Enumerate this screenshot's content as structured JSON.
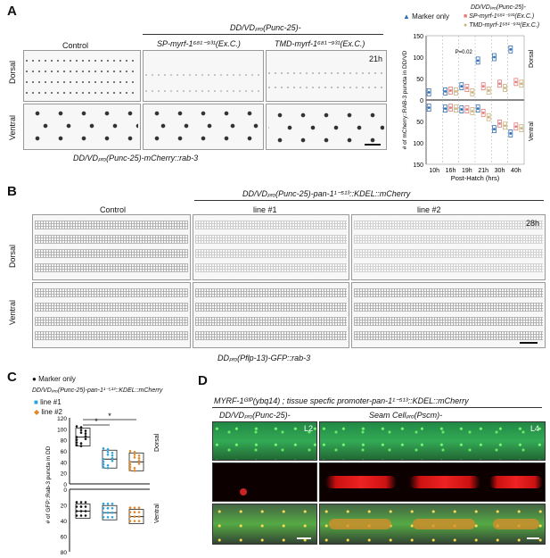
{
  "panels": {
    "A": {
      "letter": "A",
      "header": "DD/VDₚᵣₒ(Punc-25)-",
      "columns": [
        "Control",
        "SP-myrf-1⁶⁸¹⁻⁹³¹(Ex.C.)",
        "TMD-myrf-1⁶⁸¹⁻⁹³¹(Ex.C.)"
      ],
      "time": "21h",
      "rows": [
        "Dorsal",
        "Ventral"
      ],
      "footer": "DD/VDₚᵣₒ(Punc-25)-mCherry::rab-3",
      "legend": {
        "marker_only": "Marker only",
        "construct_header": "DD/VDₚᵣₒ(Punc-25)-",
        "sp": "SP-myrf-1⁶⁸¹⁻⁹³¹(Ex.C.)",
        "tmd": "TMD-myrf-1⁶⁸¹⁻⁹³¹(Ex.C.)"
      },
      "pvalue": "P=\n0.02",
      "side_labels": [
        "Dorsal",
        "Ventral"
      ]
    },
    "B": {
      "letter": "B",
      "header": "DD/VDₚᵣₒ(Punc-25)-pan-1¹⁻⁵¹³::KDEL::mCherry",
      "columns": [
        "Control",
        "line #1",
        "line #2"
      ],
      "time": "28h",
      "rows": [
        "Dorsal",
        "Ventral"
      ],
      "footer": "DDₚᵣₒ(Pflp-13)-GFP::rab-3"
    },
    "C": {
      "letter": "C",
      "legend_marker": "Marker only",
      "legend_header": "DD/VDₚᵣₒ(Punc-25)-pan-1¹⁻⁵¹³::KDEL::mCherry",
      "line1": "line #1",
      "line2": "line #2",
      "star": "*",
      "side_labels": [
        "Dorsal",
        "Ventral"
      ]
    },
    "D": {
      "letter": "D",
      "header": "MYRF-1ᴳᶠᴾ(ybq14) ;  tissue specfic promoter-pan-1¹⁻⁵¹³::KDEL::mCherry",
      "col1": "DD/VDₚᵣₒ(Punc-25)-",
      "col2": "Seam Cellₚᵣₒ(Pscm)-",
      "stage1": "L2",
      "stage2": "L4"
    }
  },
  "chart_data": [
    {
      "type": "box",
      "panel": "A",
      "categories": [
        "10h",
        "16h",
        "19h",
        "21h",
        "30h",
        "40h"
      ],
      "xlabel": "Post-Hatch (hrs)",
      "ylabel": "# of mCherry::RAB-3 puncta in DD/VD",
      "yticks": [
        "150",
        "100",
        "50",
        "0",
        "50",
        "100",
        "150"
      ],
      "ylim_dorsal": [
        0,
        150
      ],
      "ylim_ventral": [
        0,
        150
      ],
      "colors": {
        "marker_only": "#2f6db5",
        "sp": "#e57a7a",
        "tmd": "#c9b27c"
      },
      "series": [
        {
          "name": "Marker only",
          "dorsal": [
            18,
            20,
            32,
            92,
            100,
            118
          ],
          "ventral": [
            18,
            20,
            22,
            20,
            68,
            78
          ]
        },
        {
          "name": "SP-myrf-1681-931(Ex.C.)",
          "dorsal": [
            null,
            22,
            28,
            32,
            38,
            42
          ],
          "ventral": [
            null,
            18,
            22,
            30,
            55,
            62
          ]
        },
        {
          "name": "TMD-myrf-1681-931(Ex.C.)",
          "dorsal": [
            null,
            20,
            18,
            22,
            28,
            38
          ],
          "ventral": [
            null,
            20,
            26,
            40,
            60,
            66
          ]
        }
      ]
    },
    {
      "type": "box",
      "panel": "C",
      "categories": [
        "Marker only",
        "line #1",
        "line #2"
      ],
      "ylabel": "# of GFP::Rab-3 puncta in DD",
      "yticks_dorsal": [
        "120",
        "100",
        "80",
        "60",
        "40",
        "20",
        "0"
      ],
      "yticks_ventral": [
        "0",
        "20",
        "40",
        "60",
        "80"
      ],
      "colors": {
        "marker_only": "#111111",
        "line1": "#29a3d9",
        "line2": "#e0892b"
      },
      "series": [
        {
          "name": "Marker only",
          "dorsal_median": 85,
          "ventral_median": 28
        },
        {
          "name": "line #1",
          "dorsal_median": 45,
          "ventral_median": 30
        },
        {
          "name": "line #2",
          "dorsal_median": 40,
          "ventral_median": 35
        }
      ]
    }
  ]
}
